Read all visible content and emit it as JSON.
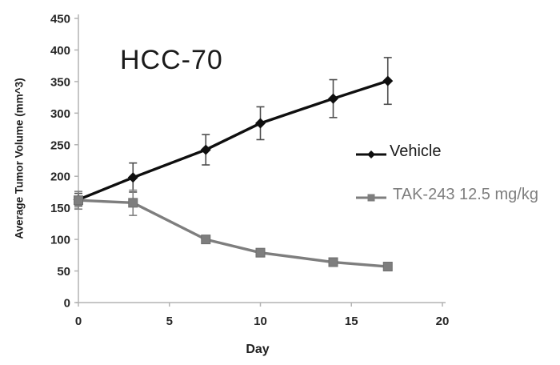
{
  "chart_data": {
    "type": "line",
    "title": "HCC-70",
    "xlabel": "Day",
    "ylabel": "Average Tumor Volume (mm^3)",
    "xlim": [
      0,
      20
    ],
    "ylim": [
      0,
      450
    ],
    "xticks": [
      0,
      5,
      10,
      15,
      20
    ],
    "yticks": [
      0,
      50,
      100,
      150,
      200,
      250,
      300,
      350,
      400,
      450
    ],
    "grid": false,
    "legend_position": "right-inside",
    "x": [
      0,
      3,
      7,
      10,
      14,
      17
    ],
    "series": [
      {
        "name": "Vehicle",
        "values": [
          163,
          198,
          242,
          284,
          323,
          351
        ],
        "errors": [
          10,
          23,
          24,
          26,
          30,
          37
        ],
        "color": "#0f0f0f",
        "error_color": "#4d4d4d",
        "marker": "diamond"
      },
      {
        "name": "TAK-243 12.5 mg/kg",
        "values": [
          162,
          158,
          100,
          79,
          64,
          57
        ],
        "errors": [
          14,
          20,
          5,
          4,
          4,
          4
        ],
        "color": "#7e7e7e",
        "error_color": "#808080",
        "marker": "square"
      }
    ]
  },
  "colors": {
    "axis": "#b3b3b3",
    "tick_label": "#262626",
    "background": "#ffffff"
  }
}
